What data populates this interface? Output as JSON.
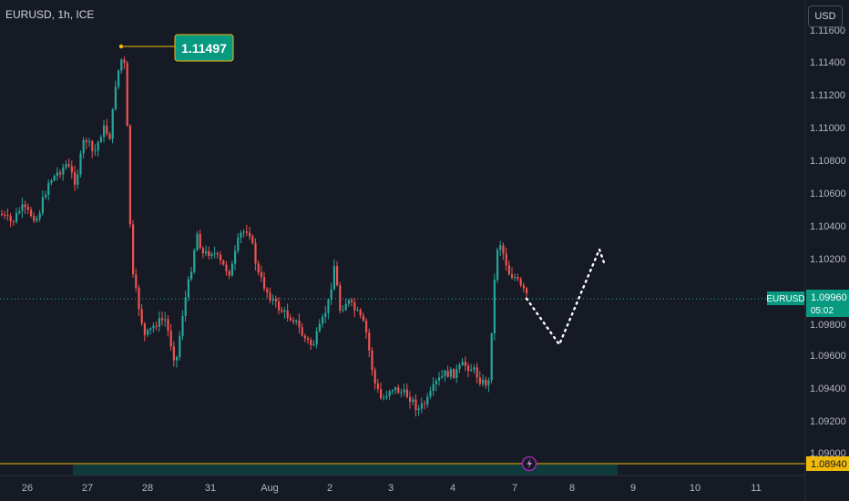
{
  "header": {
    "symbol": "EURUSD, 1h, ICE",
    "currency_button": "USD"
  },
  "price_axis": {
    "ticks": [
      "1.11600",
      "1.11400",
      "1.11200",
      "1.11000",
      "1.10800",
      "1.10600",
      "1.10400",
      "1.10200",
      "1.09800",
      "1.09600",
      "1.09400",
      "1.09200",
      "1.09000"
    ]
  },
  "time_axis": {
    "ticks": [
      "26",
      "27",
      "28",
      "31",
      "Aug",
      "2",
      "3",
      "4",
      "7",
      "8",
      "9",
      "10",
      "11"
    ]
  },
  "annotations": {
    "high_label": "1.11497",
    "current_symbol": "EURUSD",
    "current_price": "1.09960",
    "countdown": "05:02",
    "support_price": "1.08940"
  },
  "colors": {
    "background": "#161a25",
    "bull": "#26a69a",
    "bear": "#ef5350",
    "accent": "#089981",
    "support": "#f0b90b",
    "text": "#d1d4dc"
  },
  "chart_data": {
    "type": "candlestick",
    "ylim": [
      1.0888,
      1.1162
    ],
    "projection": {
      "style": "dotted",
      "points": [
        [
          1.0996
        ],
        [
          1.0968
        ],
        [
          1.1026
        ],
        [
          1.1018
        ]
      ]
    }
  }
}
